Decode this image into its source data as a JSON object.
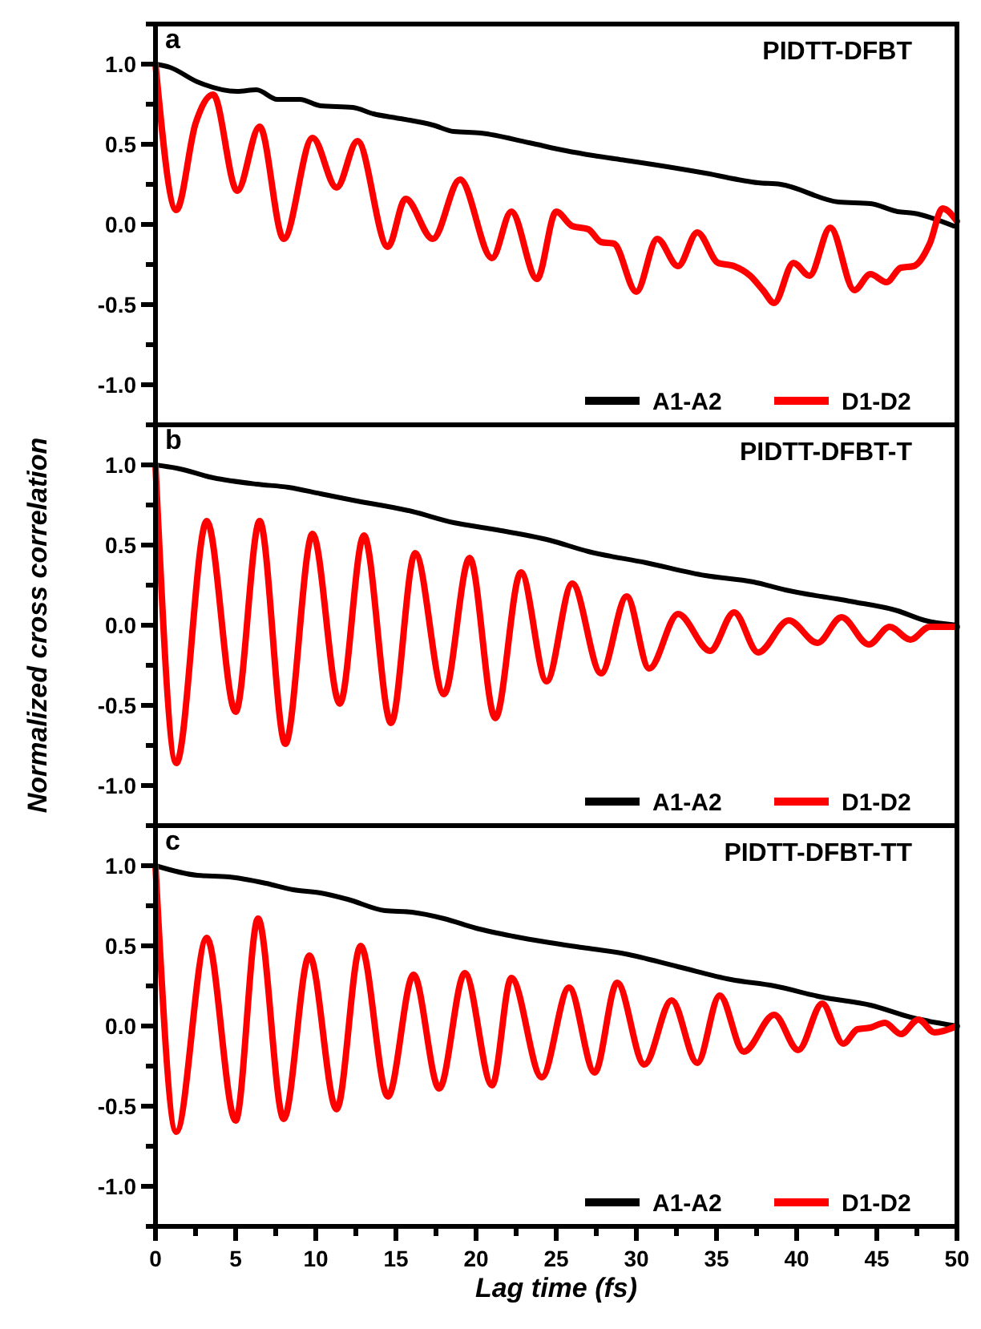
{
  "chart_data": [
    {
      "type": "line",
      "title": "PIDTT-DFBT",
      "annotations": [
        "a"
      ],
      "xlim": [
        0,
        50
      ],
      "ylim": [
        -1.25,
        1.25
      ],
      "yticks": [
        {
          "value": -1.25,
          "label": null
        },
        {
          "value": -1,
          "label": "-1.0"
        },
        {
          "value": -0.75,
          "label": null
        },
        {
          "value": -0.5,
          "label": "-0.5"
        },
        {
          "value": -0.25,
          "label": null
        },
        {
          "value": 0,
          "label": "0.0"
        },
        {
          "value": 0.25,
          "label": null
        },
        {
          "value": 0.5,
          "label": "0.5"
        },
        {
          "value": 0.75,
          "label": null
        },
        {
          "value": 1,
          "label": "1.0"
        },
        {
          "value": 1.25,
          "label": null
        }
      ],
      "tick_labels": "y",
      "legend": "bottom right",
      "series": [
        {
          "name": "A1-A2",
          "color": "#000000",
          "x": [
            0,
            0.9,
            2.6,
            5.1,
            6.3,
            7.6,
            9,
            10.3,
            12.3,
            13.6,
            15.3,
            17.3,
            18.6,
            20.3,
            23.3,
            25.6,
            27.3,
            29.3,
            31.3,
            34.3,
            37.6,
            39,
            42.6,
            44.6,
            46.3,
            47.3,
            49.8
          ],
          "values": [
            1.0,
            0.98,
            0.89,
            0.83,
            0.84,
            0.78,
            0.78,
            0.74,
            0.73,
            0.69,
            0.66,
            0.62,
            0.58,
            0.57,
            0.51,
            0.46,
            0.43,
            0.4,
            0.37,
            0.32,
            0.26,
            0.25,
            0.14,
            0.13,
            0.08,
            0.07,
            -0.01
          ]
        },
        {
          "name": "D1-D2",
          "color": "#ff0000",
          "x": [
            0,
            1.3,
            2.5,
            3.6,
            5.1,
            6.5,
            8,
            9.8,
            11.3,
            12.6,
            14.5,
            15.6,
            17.3,
            19,
            21,
            22.2,
            23.8,
            25,
            26,
            27,
            27.8,
            28.6,
            30,
            31.3,
            32.6,
            33.8,
            35.1,
            36.1,
            37.1,
            37.9,
            38.6,
            39.8,
            40.8,
            42.1,
            43.6,
            44.6,
            45.6,
            46.5,
            47.3,
            48.3,
            49.1,
            50
          ],
          "values": [
            1.0,
            0.09,
            0.63,
            0.81,
            0.21,
            0.61,
            -0.09,
            0.54,
            0.23,
            0.52,
            -0.14,
            0.16,
            -0.09,
            0.28,
            -0.21,
            0.08,
            -0.34,
            0.08,
            -0.01,
            -0.03,
            -0.11,
            -0.12,
            -0.42,
            -0.09,
            -0.26,
            -0.05,
            -0.24,
            -0.26,
            -0.32,
            -0.41,
            -0.49,
            -0.24,
            -0.32,
            -0.02,
            -0.41,
            -0.31,
            -0.36,
            -0.27,
            -0.26,
            -0.12,
            0.1,
            0.02
          ]
        }
      ]
    },
    {
      "type": "line",
      "title": "PIDTT-DFBT-T",
      "annotations": [
        "b"
      ],
      "ylabel": "Normalized cross correlation",
      "xlim": [
        0,
        50
      ],
      "ylim": [
        -1.25,
        1.25
      ],
      "yticks": [
        {
          "value": -1.25,
          "label": null
        },
        {
          "value": -1,
          "label": "-1.0"
        },
        {
          "value": -0.75,
          "label": null
        },
        {
          "value": -0.5,
          "label": "-0.5"
        },
        {
          "value": -0.25,
          "label": null
        },
        {
          "value": 0,
          "label": "0.0"
        },
        {
          "value": 0.25,
          "label": null
        },
        {
          "value": 0.5,
          "label": "0.5"
        },
        {
          "value": 0.75,
          "label": null
        },
        {
          "value": 1,
          "label": "1.0"
        },
        {
          "value": 1.25,
          "label": null
        }
      ],
      "tick_labels": "y",
      "legend": "bottom right",
      "series": [
        {
          "name": "A1-A2",
          "color": "#000000",
          "x": [
            0,
            1.3,
            3.6,
            6.3,
            8.3,
            10.3,
            12.3,
            16,
            18.6,
            21,
            24.6,
            27,
            30.6,
            34.3,
            37.3,
            39.3,
            43.3,
            46.3,
            48,
            50
          ],
          "values": [
            1.0,
            0.98,
            0.92,
            0.88,
            0.86,
            0.82,
            0.78,
            0.71,
            0.64,
            0.6,
            0.53,
            0.46,
            0.39,
            0.31,
            0.27,
            0.22,
            0.15,
            0.09,
            0.03,
            0.0
          ]
        },
        {
          "name": "D1-D2",
          "color": "#ff0000",
          "x": [
            0,
            1.3,
            3.2,
            5,
            6.5,
            8.1,
            9.8,
            11.5,
            13,
            14.7,
            16.2,
            18,
            19.6,
            21.2,
            22.8,
            24.4,
            26,
            27.8,
            29.4,
            30.8,
            32.6,
            34.6,
            36.1,
            37.6,
            39.5,
            41.3,
            42.8,
            44.5,
            45.8,
            47.1,
            48.3,
            50
          ],
          "values": [
            1.0,
            -0.86,
            0.65,
            -0.54,
            0.65,
            -0.74,
            0.57,
            -0.49,
            0.56,
            -0.61,
            0.45,
            -0.43,
            0.42,
            -0.58,
            0.33,
            -0.35,
            0.26,
            -0.3,
            0.18,
            -0.27,
            0.07,
            -0.16,
            0.08,
            -0.17,
            0.03,
            -0.11,
            0.05,
            -0.12,
            -0.01,
            -0.09,
            -0.01,
            -0.01
          ]
        }
      ]
    },
    {
      "type": "line",
      "title": "PIDTT-DFBT-TT",
      "annotations": [
        "c"
      ],
      "xlabel": "Lag time (fs)",
      "xlim": [
        0,
        50
      ],
      "xticks": [
        0,
        {
          "value": 2.5,
          "label": null
        },
        5,
        {
          "value": 7.5,
          "label": null
        },
        10,
        {
          "value": 12.5,
          "label": null
        },
        15,
        {
          "value": 17.5,
          "label": null
        },
        20,
        {
          "value": 22.5,
          "label": null
        },
        25,
        {
          "value": 27.5,
          "label": null
        },
        30,
        {
          "value": 32.5,
          "label": null
        },
        35,
        {
          "value": 37.5,
          "label": null
        },
        40,
        {
          "value": 42.5,
          "label": null
        },
        45,
        {
          "value": 47.5,
          "label": null
        },
        50
      ],
      "ylim": [
        -1.25,
        1.25
      ],
      "yticks": [
        {
          "value": -1.25,
          "label": null
        },
        {
          "value": -1,
          "label": "-1.0"
        },
        {
          "value": -0.75,
          "label": null
        },
        {
          "value": -0.5,
          "label": "-0.5"
        },
        {
          "value": -0.25,
          "label": null
        },
        {
          "value": 0,
          "label": "0.0"
        },
        {
          "value": 0.25,
          "label": null
        },
        {
          "value": 0.5,
          "label": "0.5"
        },
        {
          "value": 0.75,
          "label": null
        },
        {
          "value": 1,
          "label": "1.0"
        },
        {
          "value": 1.25,
          "label": null
        }
      ],
      "legend": "bottom right",
      "series": [
        {
          "name": "A1-A2",
          "color": "#000000",
          "x": [
            0,
            2.6,
            4.6,
            6.9,
            8.6,
            10.3,
            12,
            14.3,
            16,
            18,
            20,
            22.3,
            24.6,
            26.6,
            29.3,
            32.6,
            35.9,
            38.6,
            41.6,
            44.6,
            47.3,
            50
          ],
          "values": [
            1.0,
            0.94,
            0.93,
            0.89,
            0.85,
            0.83,
            0.79,
            0.72,
            0.71,
            0.67,
            0.61,
            0.56,
            0.52,
            0.49,
            0.45,
            0.37,
            0.29,
            0.25,
            0.18,
            0.13,
            0.05,
            0.0
          ]
        },
        {
          "name": "D1-D2",
          "color": "#ff0000",
          "x": [
            0,
            1.3,
            3.2,
            5,
            6.4,
            8,
            9.6,
            11.3,
            12.8,
            14.5,
            16.1,
            17.7,
            19.3,
            21,
            22.2,
            24.1,
            25.8,
            27.4,
            28.8,
            30.5,
            32.2,
            33.8,
            35.2,
            36.7,
            38.6,
            40.1,
            41.6,
            42.9,
            43.8,
            44.6,
            45.5,
            46.5,
            47.6,
            48.6,
            50
          ],
          "values": [
            1.0,
            -0.66,
            0.55,
            -0.59,
            0.67,
            -0.58,
            0.44,
            -0.52,
            0.5,
            -0.44,
            0.32,
            -0.39,
            0.33,
            -0.37,
            0.3,
            -0.32,
            0.24,
            -0.29,
            0.27,
            -0.24,
            0.16,
            -0.23,
            0.19,
            -0.16,
            0.07,
            -0.15,
            0.14,
            -0.11,
            -0.02,
            -0.01,
            0.02,
            -0.05,
            0.04,
            -0.04,
            0.0
          ]
        }
      ]
    }
  ]
}
